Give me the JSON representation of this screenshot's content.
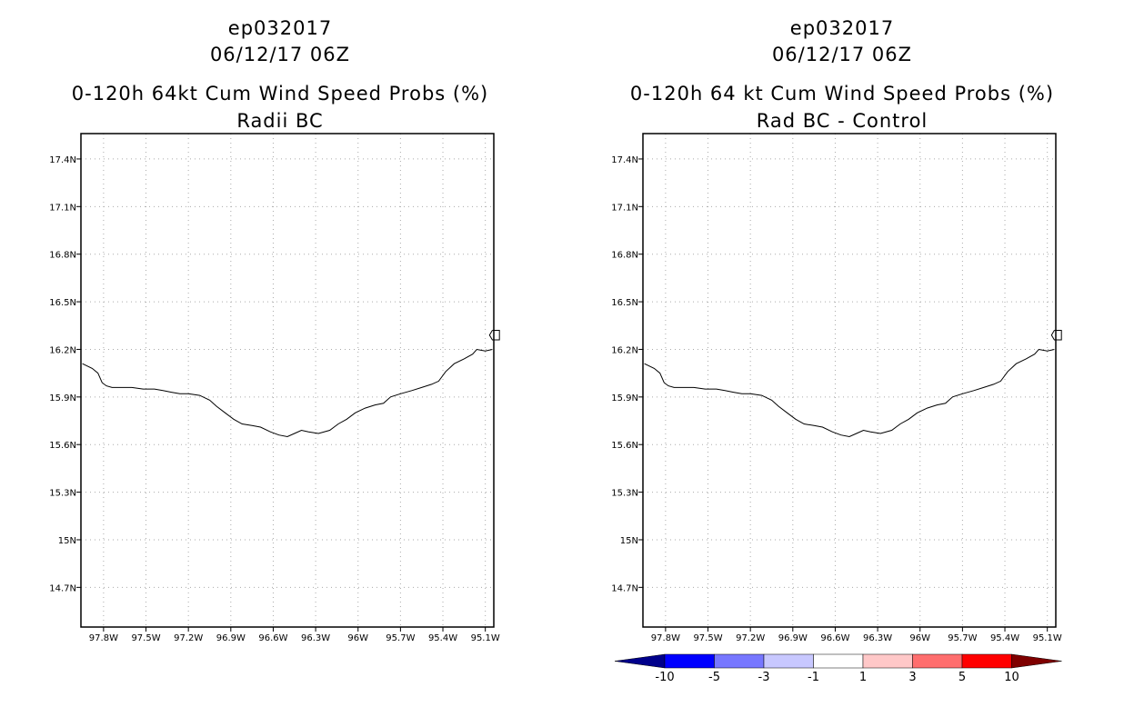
{
  "chart_data": [
    {
      "type": "map",
      "title_lines": [
        "ep032017",
        "06/12/17 06Z",
        "0-120h 64kt Cum Wind Speed Probs (%)",
        "Radii BC"
      ],
      "x_ticks": [
        "97.8W",
        "97.5W",
        "97.2W",
        "96.9W",
        "96.6W",
        "96.3W",
        "96W",
        "95.7W",
        "95.4W",
        "95.1W"
      ],
      "y_ticks": [
        "17.4N",
        "17.1N",
        "16.8N",
        "16.5N",
        "16.2N",
        "15.9N",
        "15.6N",
        "15.3N",
        "15N",
        "14.7N"
      ],
      "grid": true,
      "coastline": [
        [
          -97.95,
          16.11
        ],
        [
          -97.88,
          16.08
        ],
        [
          -97.84,
          16.05
        ],
        [
          -97.81,
          15.99
        ],
        [
          -97.78,
          15.97
        ],
        [
          -97.74,
          15.96
        ],
        [
          -97.68,
          15.96
        ],
        [
          -97.6,
          15.96
        ],
        [
          -97.52,
          15.95
        ],
        [
          -97.44,
          15.95
        ],
        [
          -97.38,
          15.94
        ],
        [
          -97.32,
          15.93
        ],
        [
          -97.26,
          15.92
        ],
        [
          -97.2,
          15.92
        ],
        [
          -97.12,
          15.91
        ],
        [
          -97.05,
          15.88
        ],
        [
          -97.0,
          15.84
        ],
        [
          -96.94,
          15.8
        ],
        [
          -96.88,
          15.76
        ],
        [
          -96.82,
          15.73
        ],
        [
          -96.75,
          15.72
        ],
        [
          -96.69,
          15.71
        ],
        [
          -96.62,
          15.68
        ],
        [
          -96.56,
          15.66
        ],
        [
          -96.5,
          15.65
        ],
        [
          -96.45,
          15.67
        ],
        [
          -96.4,
          15.69
        ],
        [
          -96.35,
          15.68
        ],
        [
          -96.28,
          15.67
        ],
        [
          -96.2,
          15.69
        ],
        [
          -96.14,
          15.73
        ],
        [
          -96.08,
          15.76
        ],
        [
          -96.02,
          15.8
        ],
        [
          -95.95,
          15.83
        ],
        [
          -95.88,
          15.85
        ],
        [
          -95.82,
          15.86
        ],
        [
          -95.77,
          15.9
        ],
        [
          -95.7,
          15.92
        ],
        [
          -95.62,
          15.94
        ],
        [
          -95.55,
          15.96
        ],
        [
          -95.48,
          15.98
        ],
        [
          -95.43,
          16.0
        ],
        [
          -95.38,
          16.06
        ],
        [
          -95.32,
          16.11
        ],
        [
          -95.25,
          16.14
        ],
        [
          -95.19,
          16.17
        ],
        [
          -95.16,
          16.2
        ],
        [
          -95.1,
          16.19
        ],
        [
          -95.05,
          16.2
        ]
      ],
      "island": [
        [
          -95.05,
          16.32
        ],
        [
          -95.0,
          16.32
        ],
        [
          -95.0,
          16.26
        ],
        [
          -95.05,
          16.26
        ],
        [
          -95.07,
          16.29
        ],
        [
          -95.05,
          16.32
        ]
      ]
    },
    {
      "type": "map",
      "title_lines": [
        "ep032017",
        "06/12/17 06Z",
        "0-120h 64 kt Cum Wind Speed Probs (%)",
        "Rad BC - Control"
      ],
      "x_ticks": [
        "97.8W",
        "97.5W",
        "97.2W",
        "96.9W",
        "96.6W",
        "96.3W",
        "96W",
        "95.7W",
        "95.4W",
        "95.1W"
      ],
      "y_ticks": [
        "17.4N",
        "17.1N",
        "16.8N",
        "16.5N",
        "16.2N",
        "15.9N",
        "15.6N",
        "15.3N",
        "15N",
        "14.7N"
      ],
      "grid": true,
      "colorbar": {
        "labels": [
          "-10",
          "-5",
          "-3",
          "-1",
          "1",
          "3",
          "5",
          "10"
        ],
        "colors": [
          "#00008b",
          "#0000ff",
          "#7777ff",
          "#c8c8ff",
          "#ffffff",
          "#ffc8c8",
          "#ff6e6e",
          "#ff0000",
          "#7f0000"
        ]
      }
    }
  ]
}
